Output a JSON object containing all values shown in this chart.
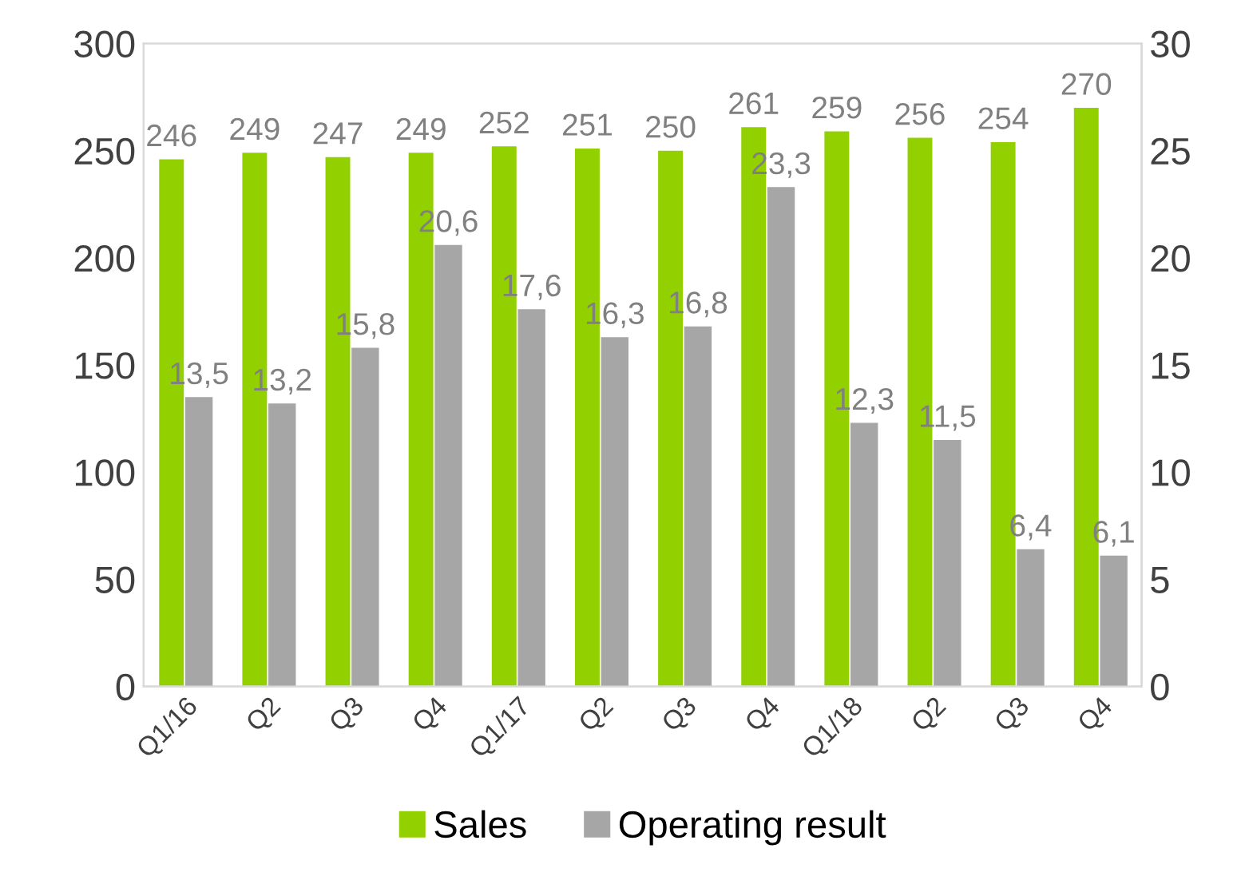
{
  "chart_data": {
    "type": "bar",
    "categories": [
      "Q1/16",
      "Q2",
      "Q3",
      "Q4",
      "Q1/17",
      "Q2",
      "Q3",
      "Q4",
      "Q1/18",
      "Q2",
      "Q3",
      "Q4"
    ],
    "series": [
      {
        "name": "Sales",
        "color": "#92d000",
        "values": [
          246,
          249,
          247,
          249,
          252,
          251,
          250,
          261,
          259,
          256,
          254,
          270
        ],
        "data_labels": true
      },
      {
        "name": "Operating result",
        "color": "#a6a6a6",
        "axis": "y2",
        "values": [
          13.5,
          13.2,
          15.8,
          20.6,
          17.6,
          16.3,
          16.8,
          23.3,
          12.3,
          11.5,
          6.4,
          6.1
        ],
        "value_labels": [
          "13,5",
          "13,2",
          "15,8",
          "20,6",
          "17,6",
          "16,3",
          "16,8",
          "23,3",
          "12,3",
          "11,5",
          "6,4",
          "6,1"
        ]
      }
    ],
    "ylim": [
      0,
      300
    ],
    "yticks": [
      0,
      50,
      100,
      150,
      200,
      250,
      300
    ],
    "y2lim": [
      0,
      30
    ],
    "y2ticks": [
      0,
      5,
      10,
      15,
      20,
      25,
      30
    ],
    "grid": false,
    "legend": "bottom"
  }
}
